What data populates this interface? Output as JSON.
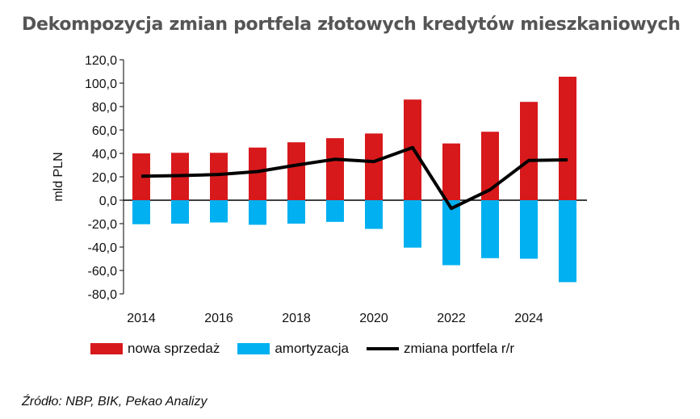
{
  "title": "Dekompozycja zmian portfela złotowych kredytów mieszkaniowych",
  "source": "Źródło: NBP, BIK, Pekao Analizy",
  "chart_data": {
    "type": "bar",
    "title": "Dekompozycja zmian portfela złotowych kredytów mieszkaniowych",
    "xlabel": "",
    "ylabel": "mld PLN",
    "ylim": [
      -80,
      120
    ],
    "yticks": [
      "120,0",
      "100,0",
      "80,0",
      "60,0",
      "40,0",
      "20,0",
      "0,0",
      "-20,0",
      "-40,0",
      "-60,0",
      "-80,0"
    ],
    "ytick_values": [
      120,
      100,
      80,
      60,
      40,
      20,
      0,
      -20,
      -40,
      -60,
      -80
    ],
    "categories": [
      2014,
      2015,
      2016,
      2017,
      2018,
      2019,
      2020,
      2021,
      2022,
      2023,
      2024,
      2025
    ],
    "xtick_labels": [
      "2014",
      "2016",
      "2018",
      "2020",
      "2022",
      "2024"
    ],
    "legend": "bottom",
    "grid": false,
    "series": [
      {
        "name": "nowa sprzedaż",
        "type": "bar",
        "color": "#d7191c",
        "values": [
          40,
          40.5,
          40.5,
          45,
          49.5,
          53,
          57,
          86,
          48.5,
          58.5,
          84,
          105.5
        ]
      },
      {
        "name": "amortyzacja",
        "type": "bar",
        "color": "#00b0f0",
        "values": [
          -20.5,
          -20,
          -19,
          -21,
          -20,
          -18.5,
          -24.5,
          -40.5,
          -55.5,
          -49.5,
          -50,
          -70
        ]
      },
      {
        "name": "zmiana portfela r/r",
        "type": "line",
        "color": "#000000",
        "values": [
          20.5,
          21,
          22,
          24.5,
          30,
          35,
          33,
          45,
          -7,
          9,
          34,
          34.5
        ]
      }
    ]
  }
}
